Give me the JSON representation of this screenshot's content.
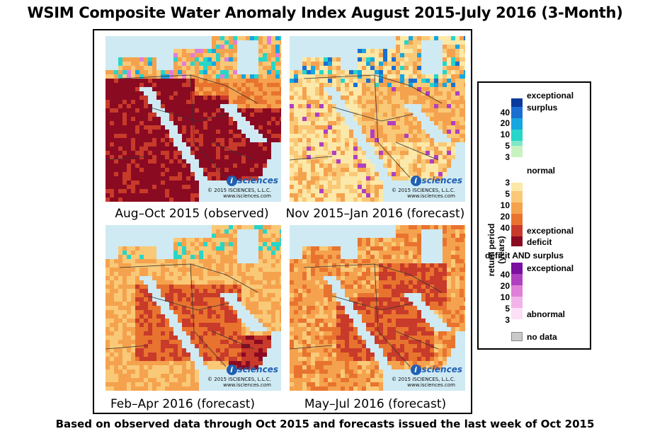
{
  "title": "WSIM Composite Water Anomaly Index August 2015-July 2016 (3-Month)",
  "panels": [
    {
      "caption": "Aug–Oct 2015 (observed)"
    },
    {
      "caption": "Nov 2015–Jan 2016 (forecast)"
    },
    {
      "caption": "Feb–Apr 2016 (forecast)"
    },
    {
      "caption": "May–Jul 2016 (forecast)"
    }
  ],
  "watermark": {
    "logo_text": "sciences",
    "logo_letter": "i",
    "copyright_line1": "© 2015 ISCIENCES, L.L.C.",
    "copyright_line2": "www.isciences.com"
  },
  "legend": {
    "axis_label": "return period (years)",
    "surplus_label": "exceptional surplus",
    "surplus_label_l1": "exceptional",
    "surplus_label_l2": "surplus",
    "normal_label": "normal",
    "deficit_label_l1": "exceptional",
    "deficit_label_l2": "deficit",
    "both_title": "deficit AND surplus",
    "both_exceptional": "exceptional",
    "both_abnormal": "abnormal",
    "no_data": "no data",
    "surplus_ticks": [
      "40",
      "20",
      "10",
      "5",
      "3"
    ],
    "deficit_ticks": [
      "3",
      "5",
      "10",
      "20",
      "40"
    ],
    "both_ticks": [
      "40",
      "20",
      "10",
      "5",
      "3"
    ],
    "surplus_colors": [
      "#0a3a9c",
      "#1b6fd1",
      "#16a6e0",
      "#27d6c8",
      "#7fe8c8",
      "#c8f2c0"
    ],
    "normal_color": "#ffffff",
    "deficit_colors": [
      "#fce8a8",
      "#f9c977",
      "#f5a24e",
      "#e8732f",
      "#c83a2a",
      "#8a0a22"
    ],
    "both_colors": [
      "#7b0f9e",
      "#b040c0",
      "#e07fd8",
      "#f2b3ea",
      "#fbe0f6"
    ],
    "no_data_color": "#c9c9c9"
  },
  "footer": "Based on observed data through Oct 2015 and forecasts issued the last week of Oct 2015"
}
